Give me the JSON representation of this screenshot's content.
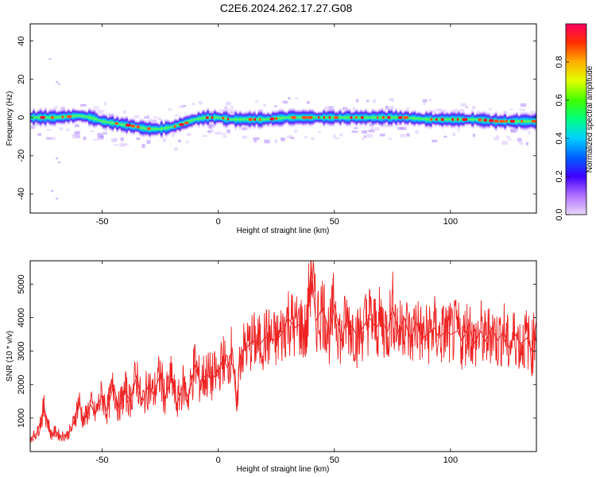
{
  "title": "C2E6.2024.262.17.27.G08",
  "colorbar": {
    "label": "Normalized spectral amplitude",
    "ticks": [
      "0.0",
      "0.2",
      "0.4",
      "0.6",
      "0.8"
    ],
    "tick_values": [
      0.0,
      0.2,
      0.4,
      0.6,
      0.8
    ],
    "range": [
      0,
      1
    ],
    "colors": [
      "#e8d8f8",
      "#b070ff",
      "#4000ff",
      "#0060ff",
      "#00d0ff",
      "#00ff80",
      "#40ff00",
      "#e0ff00",
      "#ffb000",
      "#ff3000",
      "#ff0060"
    ]
  },
  "chart_data": [
    {
      "type": "heatmap",
      "title": "",
      "xlabel": "Height of straight line (km)",
      "ylabel": "Frequency (Hz)",
      "xlim": [
        -81,
        137
      ],
      "ylim": [
        -50,
        49
      ],
      "xticks": [
        -50,
        0,
        50,
        100
      ],
      "xtick_labels": [
        "-50",
        "0",
        "50",
        "100"
      ],
      "yticks": [
        -40,
        -20,
        0,
        20,
        40
      ],
      "ytick_labels": [
        "-40",
        "-20",
        "0",
        "20",
        "40"
      ],
      "ridge": {
        "x": [
          -81,
          -70,
          -60,
          -55,
          -50,
          -45,
          -40,
          -35,
          -30,
          -25,
          -20,
          -15,
          -10,
          -5,
          0,
          5,
          10,
          20,
          30,
          40,
          50,
          60,
          70,
          80,
          90,
          100,
          110,
          120,
          130,
          137
        ],
        "y": [
          0,
          0,
          1,
          0,
          -2,
          -3,
          -4,
          -5,
          -6,
          -6,
          -5,
          -3,
          -1,
          0,
          0,
          -1,
          -1,
          -1,
          0,
          0,
          0,
          0,
          0,
          0,
          -1,
          -1,
          -1,
          -2,
          -2,
          -2
        ]
      }
    },
    {
      "type": "line",
      "title": "",
      "xlabel": "Height of straight line (km)",
      "ylabel": "SNR (10 * v/v)",
      "xlim": [
        -81,
        137
      ],
      "ylim": [
        0,
        5700
      ],
      "xticks": [
        -50,
        0,
        50,
        100
      ],
      "xtick_labels": [
        "-50",
        "0",
        "50",
        "100"
      ],
      "yticks": [
        1000,
        2000,
        3000,
        4000,
        5000
      ],
      "ytick_labels": [
        "1000",
        "2000",
        "3000",
        "4000",
        "5000"
      ],
      "color": "#ee2222",
      "series": [
        {
          "x": [
            -81,
            -78,
            -75,
            -72,
            -70,
            -68,
            -65,
            -63,
            -60,
            -58,
            -55,
            -53,
            -50,
            -48,
            -45,
            -43,
            -40,
            -38,
            -35,
            -33,
            -30,
            -28,
            -25,
            -23,
            -20,
            -18,
            -15,
            -13,
            -10,
            -8,
            -5,
            -3,
            0,
            2,
            4,
            6,
            8,
            9,
            10,
            12,
            15,
            18,
            20,
            22,
            25,
            28,
            30,
            33,
            35,
            38,
            40,
            42,
            45,
            48,
            50,
            53,
            55,
            58,
            60,
            63,
            65,
            68,
            70,
            73,
            75,
            78,
            80,
            83,
            85,
            88,
            90,
            93,
            95,
            98,
            100,
            103,
            105,
            108,
            110,
            113,
            115,
            118,
            120,
            123,
            125,
            128,
            130,
            133,
            135,
            137
          ],
          "y": [
            400,
            550,
            1300,
            500,
            600,
            450,
            500,
            700,
            1500,
            900,
            1400,
            1100,
            1700,
            1200,
            2000,
            1300,
            1800,
            1500,
            2300,
            1400,
            2000,
            1700,
            2300,
            1600,
            2200,
            1400,
            2000,
            1600,
            2600,
            2100,
            2300,
            2200,
            2300,
            2800,
            2500,
            3100,
            1200,
            2600,
            3000,
            3100,
            3300,
            3200,
            3400,
            3400,
            3300,
            3600,
            4000,
            3700,
            3800,
            3500,
            5600,
            3900,
            4300,
            3500,
            4400,
            3300,
            3900,
            3700,
            3400,
            3800,
            4000,
            3700,
            3900,
            3600,
            4300,
            3500,
            4000,
            3300,
            3900,
            3400,
            3500,
            3700,
            3400,
            3600,
            3500,
            3600,
            3300,
            3800,
            3200,
            3600,
            3300,
            3700,
            3300,
            3600,
            3100,
            3500,
            3200,
            3400,
            3000,
            3900
          ]
        }
      ]
    }
  ]
}
